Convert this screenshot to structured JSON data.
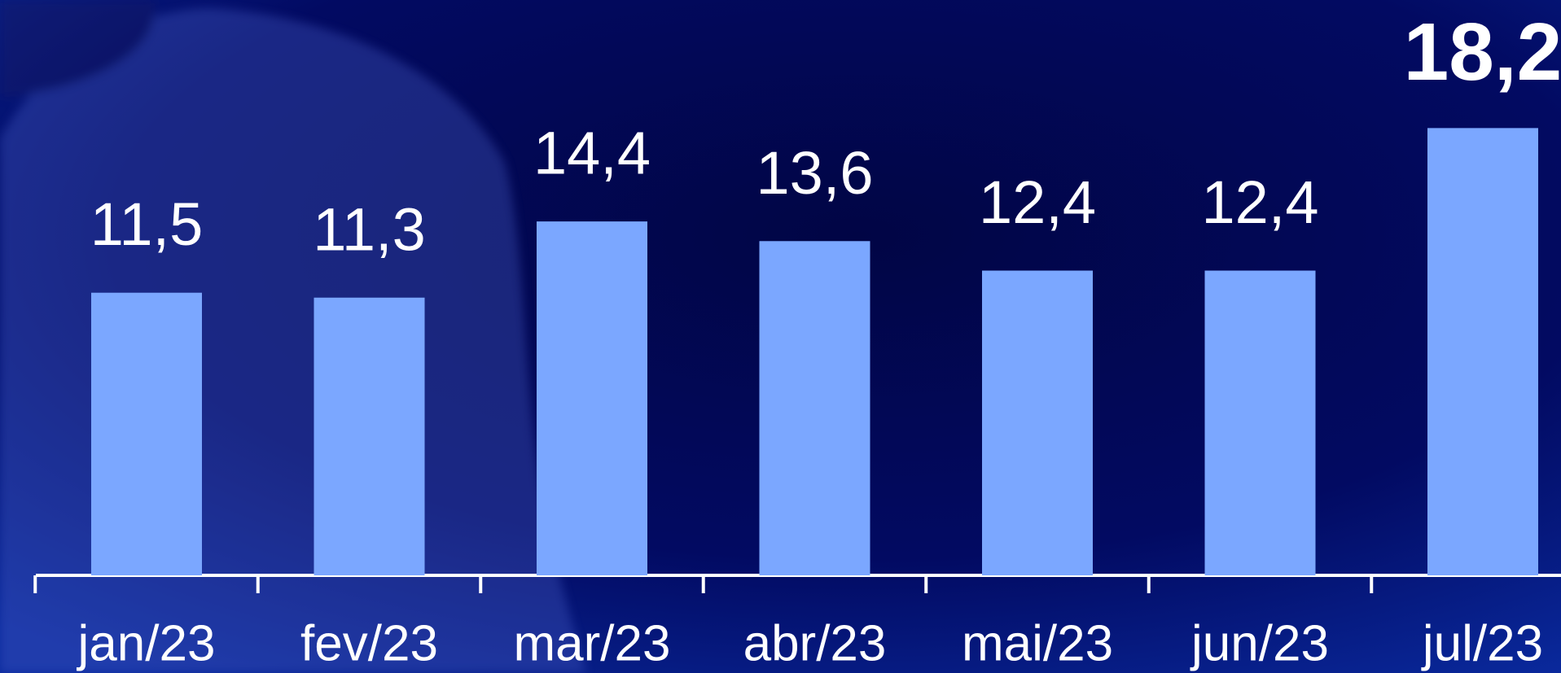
{
  "chart_data": {
    "type": "bar",
    "categories": [
      "jan/23",
      "fev/23",
      "mar/23",
      "abr/23",
      "mai/23",
      "jun/23",
      "jul/23"
    ],
    "values": [
      11.5,
      11.3,
      14.4,
      13.6,
      12.4,
      12.4,
      18.2
    ],
    "value_labels": [
      "11,5",
      "11,3",
      "14,4",
      "13,6",
      "12,4",
      "12,4",
      "18,2"
    ],
    "color": "#7ba7ff"
  }
}
